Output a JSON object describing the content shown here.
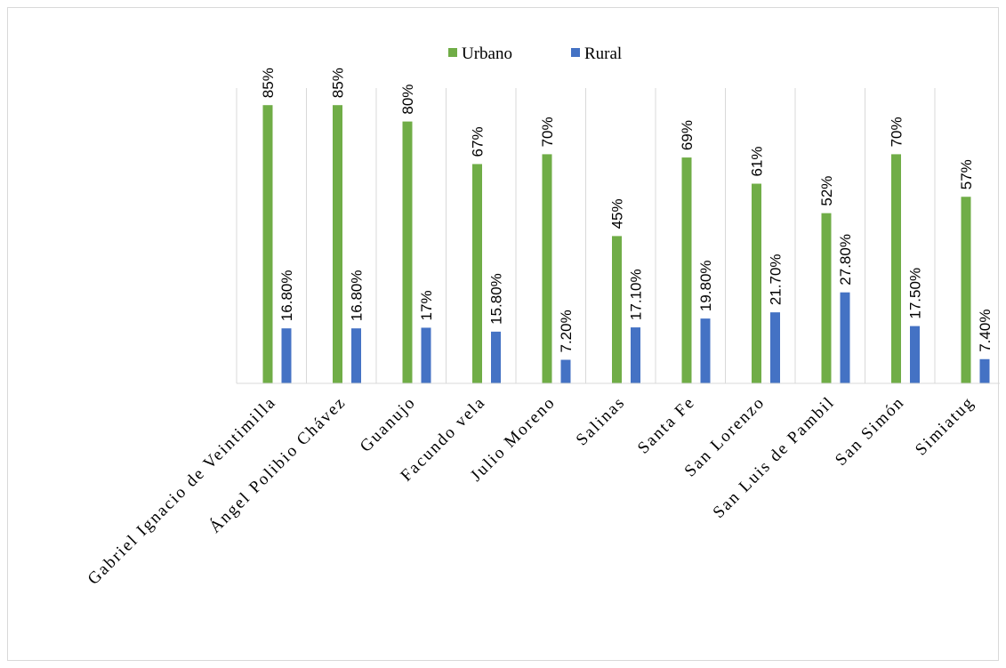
{
  "chart_data": {
    "type": "bar",
    "categories": [
      "Gabriel Ignacio de Veintimilla",
      "Ángel Polibio Chávez",
      "Guanujo",
      "Facundo vela",
      "Julio Moreno",
      "Salinas",
      "Santa Fe",
      "San Lorenzo",
      "San Luis de Pambil",
      "San Simón",
      "Simiatug"
    ],
    "series": [
      {
        "name": "Urbano",
        "color": "#70ad47",
        "values": [
          85,
          85,
          80,
          67,
          70,
          45,
          69,
          61,
          52,
          70,
          57
        ],
        "labels": [
          "85%",
          "85%",
          "80%",
          "67%",
          "70%",
          "45%",
          "69%",
          "61%",
          "52%",
          "70%",
          "57%"
        ]
      },
      {
        "name": "Rural",
        "color": "#4472c4",
        "values": [
          16.8,
          16.8,
          17,
          15.8,
          7.2,
          17.1,
          19.8,
          21.7,
          27.8,
          17.5,
          7.4
        ],
        "labels": [
          "16.80%",
          "16.80%",
          "17%",
          "15.80%",
          "7.20%",
          "17.10%",
          "19.80%",
          "21.70%",
          "27.80%",
          "17.50%",
          "7.40%"
        ]
      }
    ],
    "legend_position": "top",
    "grid": "vertical-category-dividers",
    "ylim": [
      0,
      100
    ]
  }
}
